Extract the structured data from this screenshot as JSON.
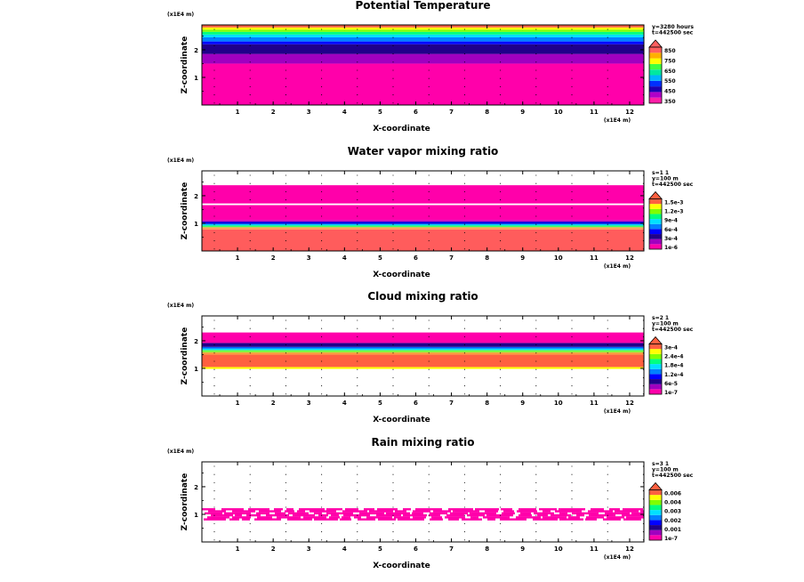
{
  "chart_data": [
    {
      "type": "heatmap",
      "title": "Potential Temperature",
      "xlabel": "X-coordinate",
      "ylabel": "Z-coordinate",
      "x_unit": "(x1E4 m)",
      "z_unit": "(x1E4 m)",
      "xlim": [
        0,
        12.4
      ],
      "zlim": [
        0,
        2.9
      ],
      "x_ticks": [
        "1",
        "2",
        "3",
        "4",
        "5",
        "6",
        "7",
        "8",
        "9",
        "10",
        "11",
        "12"
      ],
      "z_ticks": [
        "1",
        "2"
      ],
      "info": [
        "y=3280 hours",
        "t=442500 sec"
      ],
      "colorbar_ticks": [
        "850",
        "750",
        "650",
        "550",
        "450",
        "350"
      ],
      "colorbar_colors": [
        "#ff1fa8",
        "#b000c8",
        "#1a00b4",
        "#0030ff",
        "#00b4ff",
        "#00e8a0",
        "#40ff40",
        "#ffff00",
        "#ffb000",
        "#ff6060"
      ],
      "bands": [
        {
          "z0": 0.0,
          "z1": 1.5,
          "color": "#ff00aa"
        },
        {
          "z0": 1.5,
          "z1": 1.85,
          "color": "#a000c0"
        },
        {
          "z0": 1.85,
          "z1": 2.2,
          "color": "#20008a"
        },
        {
          "z0": 2.2,
          "z1": 2.3,
          "color": "#0000ff"
        },
        {
          "z0": 2.3,
          "z1": 2.45,
          "color": "#0080ff"
        },
        {
          "z0": 2.45,
          "z1": 2.55,
          "color": "#00e0ff"
        },
        {
          "z0": 2.55,
          "z1": 2.65,
          "color": "#00ff80"
        },
        {
          "z0": 2.65,
          "z1": 2.73,
          "color": "#80ff00"
        },
        {
          "z0": 2.73,
          "z1": 2.81,
          "color": "#ffff00"
        },
        {
          "z0": 2.81,
          "z1": 2.9,
          "color": "#ff6040"
        }
      ]
    },
    {
      "type": "heatmap",
      "title": "Water vapor mixing ratio",
      "xlabel": "X-coordinate",
      "ylabel": "Z-coordinate",
      "x_unit": "(x1E4 m)",
      "z_unit": "(x1E4 m)",
      "xlim": [
        0,
        12.4
      ],
      "zlim": [
        0,
        2.9
      ],
      "x_ticks": [
        "1",
        "2",
        "3",
        "4",
        "5",
        "6",
        "7",
        "8",
        "9",
        "10",
        "11",
        "12"
      ],
      "z_ticks": [
        "1",
        "2"
      ],
      "info": [
        "s=1 1",
        "y=100 m",
        "t=442500 sec"
      ],
      "colorbar_ticks": [
        "1.5e-3",
        "1.2e-3",
        "9e-4",
        "6e-4",
        "3e-4",
        "1e-6"
      ],
      "colorbar_colors": [
        "#ff00aa",
        "#a000c0",
        "#20008a",
        "#0000ff",
        "#0080ff",
        "#00e0ff",
        "#00ff80",
        "#80ff00",
        "#ffff00",
        "#ff6040"
      ],
      "bands": [
        {
          "z0": 0.0,
          "z1": 0.78,
          "color": "#ff5c5c"
        },
        {
          "z0": 0.78,
          "z1": 0.86,
          "color": "#ffa050"
        },
        {
          "z0": 0.86,
          "z1": 0.92,
          "color": "#40ff60"
        },
        {
          "z0": 0.92,
          "z1": 0.98,
          "color": "#00c8ff"
        },
        {
          "z0": 0.98,
          "z1": 1.06,
          "color": "#0000e0"
        },
        {
          "z0": 1.06,
          "z1": 1.12,
          "color": "#c000c0"
        },
        {
          "z0": 1.12,
          "z1": 1.66,
          "color": "#ff00aa"
        },
        {
          "z0": 1.66,
          "z1": 1.72,
          "color": "#ffffff"
        },
        {
          "z0": 1.72,
          "z1": 2.38,
          "color": "#ff00aa"
        }
      ]
    },
    {
      "type": "heatmap",
      "title": "Cloud mixing ratio",
      "xlabel": "X-coordinate",
      "ylabel": "Z-coordinate",
      "x_unit": "(x1E4 m)",
      "z_unit": "(x1E4 m)",
      "xlim": [
        0,
        12.4
      ],
      "zlim": [
        0,
        2.9
      ],
      "x_ticks": [
        "1",
        "2",
        "3",
        "4",
        "5",
        "6",
        "7",
        "8",
        "9",
        "10",
        "11",
        "12"
      ],
      "z_ticks": [
        "1",
        "2"
      ],
      "info": [
        "s=2 1",
        "y=100 m",
        "t=442500 sec"
      ],
      "colorbar_ticks": [
        "3e-4",
        "2.4e-4",
        "1.8e-4",
        "1.2e-4",
        "6e-5",
        "1e-7"
      ],
      "colorbar_colors": [
        "#ff00aa",
        "#a000c0",
        "#20008a",
        "#0000ff",
        "#0080ff",
        "#00e0ff",
        "#00ff80",
        "#80ff00",
        "#ffff00",
        "#ff6040"
      ],
      "bands": [
        {
          "z0": 0.98,
          "z1": 1.05,
          "color": "#ffff00"
        },
        {
          "z0": 1.05,
          "z1": 1.5,
          "color": "#ff6040"
        },
        {
          "z0": 1.5,
          "z1": 1.58,
          "color": "#ffa040"
        },
        {
          "z0": 1.58,
          "z1": 1.66,
          "color": "#80ff40"
        },
        {
          "z0": 1.66,
          "z1": 1.72,
          "color": "#00e0ff"
        },
        {
          "z0": 1.72,
          "z1": 1.78,
          "color": "#0060ff"
        },
        {
          "z0": 1.78,
          "z1": 1.92,
          "color": "#20008a"
        },
        {
          "z0": 1.92,
          "z1": 2.3,
          "color": "#ff00aa"
        }
      ]
    },
    {
      "type": "heatmap",
      "title": "Rain mixing ratio",
      "xlabel": "X-coordinate",
      "ylabel": "Z-coordinate",
      "x_unit": "(x1E4 m)",
      "z_unit": "(x1E4 m)",
      "xlim": [
        0,
        12.4
      ],
      "zlim": [
        0,
        2.9
      ],
      "x_ticks": [
        "1",
        "2",
        "3",
        "4",
        "5",
        "6",
        "7",
        "8",
        "9",
        "10",
        "11",
        "12"
      ],
      "z_ticks": [
        "1",
        "2"
      ],
      "info": [
        "s=3 1",
        "y=100 m",
        "t=442500 sec"
      ],
      "colorbar_ticks": [
        "0.006",
        "0.004",
        "0.003",
        "0.002",
        "0.001",
        "1e-7"
      ],
      "colorbar_colors": [
        "#ff00aa",
        "#a000c0",
        "#20008a",
        "#0000ff",
        "#0080ff",
        "#00e0ff",
        "#00ff80",
        "#80ff00",
        "#ffff00",
        "#ff6040"
      ],
      "bands": [
        {
          "z0": 0.78,
          "z1": 1.22,
          "color": "#ff00aa",
          "broken": true
        }
      ]
    }
  ]
}
